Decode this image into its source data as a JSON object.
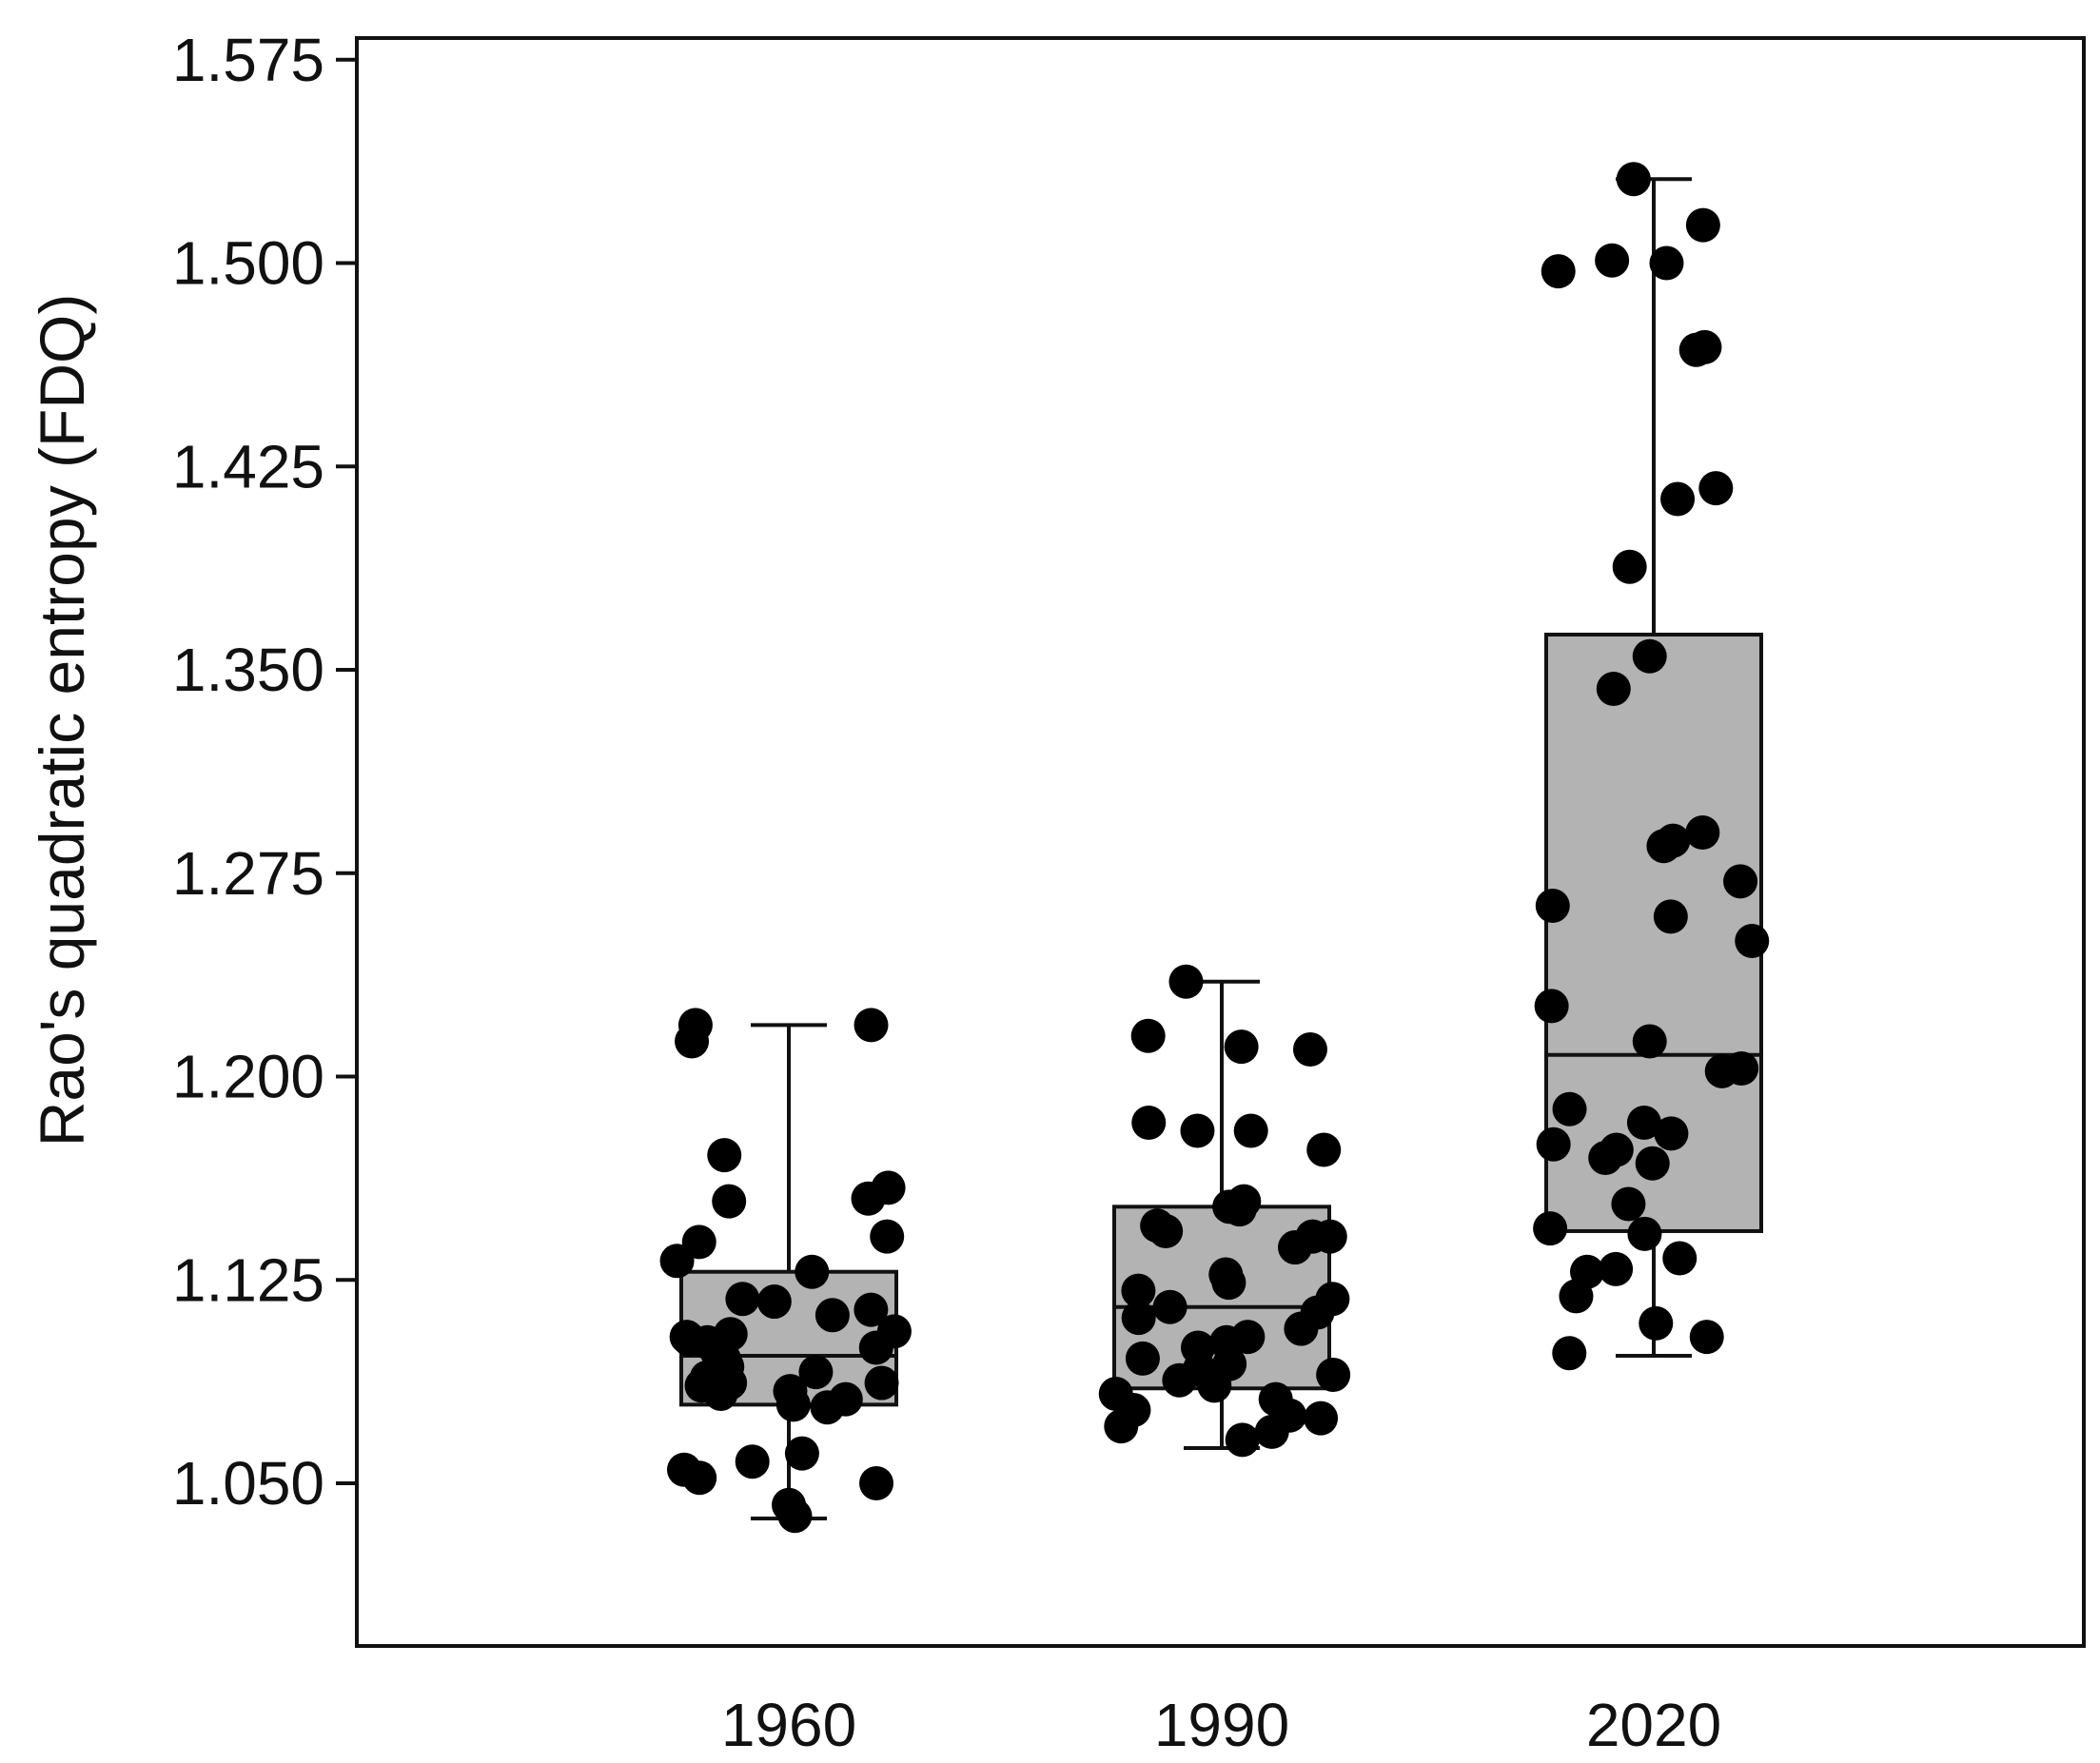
{
  "chart_data": {
    "type": "box",
    "xlabel": "",
    "ylabel": "Rao's quadratic entropy  (FDQ)",
    "ylim": [
      0.99,
      1.583
    ],
    "yticks": [
      "1.050",
      "1.125",
      "1.200",
      "1.275",
      "1.350",
      "1.425",
      "1.500",
      "1.575"
    ],
    "grid": false,
    "legend": "none",
    "colors": {
      "box_fill": "#b3b3b3",
      "stroke": "#111111",
      "points": "#000000"
    },
    "categories": [
      "1960",
      "1990",
      "2020"
    ],
    "boxes": [
      {
        "category": "1960",
        "whisker_low": 1.037,
        "q1": 1.079,
        "median": 1.097,
        "q3": 1.128,
        "whisker_high": 1.219
      },
      {
        "category": "1990",
        "whisker_low": 1.063,
        "q1": 1.085,
        "median": 1.115,
        "q3": 1.152,
        "whisker_high": 1.235
      },
      {
        "category": "2020",
        "whisker_low": 1.097,
        "q1": 1.143,
        "median": 1.208,
        "q3": 1.363,
        "whisker_high": 1.531
      }
    ],
    "points": [
      {
        "category": "1960",
        "values": [
          1.219,
          1.219,
          1.213,
          1.171,
          1.159,
          1.154,
          1.155,
          1.141,
          1.139,
          1.132,
          1.128,
          1.118,
          1.117,
          1.114,
          1.112,
          1.106,
          1.105,
          1.104,
          1.103,
          1.102,
          1.1,
          1.098,
          1.096,
          1.093,
          1.092,
          1.091,
          1.089,
          1.087,
          1.087,
          1.086,
          1.084,
          1.083,
          1.081,
          1.079,
          1.078,
          1.061,
          1.058,
          1.055,
          1.052,
          1.05,
          1.042,
          1.038
        ]
      },
      {
        "category": "1990",
        "values": [
          1.235,
          1.215,
          1.211,
          1.21,
          1.183,
          1.18,
          1.18,
          1.173,
          1.154,
          1.152,
          1.151,
          1.145,
          1.143,
          1.141,
          1.141,
          1.137,
          1.127,
          1.124,
          1.121,
          1.118,
          1.115,
          1.113,
          1.111,
          1.107,
          1.104,
          1.102,
          1.1,
          1.096,
          1.094,
          1.092,
          1.09,
          1.088,
          1.086,
          1.083,
          1.081,
          1.077,
          1.075,
          1.074,
          1.071,
          1.069,
          1.066
        ]
      },
      {
        "category": "2020",
        "values": [
          1.531,
          1.514,
          1.501,
          1.5,
          1.497,
          1.469,
          1.468,
          1.417,
          1.413,
          1.388,
          1.355,
          1.343,
          1.29,
          1.287,
          1.285,
          1.272,
          1.263,
          1.259,
          1.25,
          1.226,
          1.213,
          1.203,
          1.202,
          1.188,
          1.183,
          1.179,
          1.175,
          1.173,
          1.17,
          1.168,
          1.153,
          1.144,
          1.142,
          1.133,
          1.129,
          1.128,
          1.119,
          1.109,
          1.104,
          1.098
        ]
      }
    ]
  }
}
